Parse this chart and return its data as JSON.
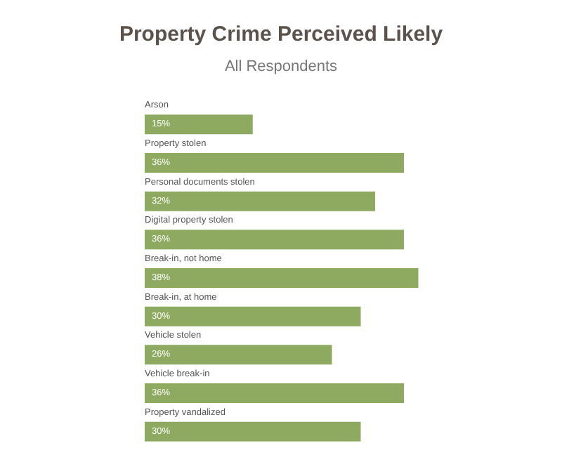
{
  "chart_data": {
    "type": "bar",
    "orientation": "horizontal",
    "title": "Property Crime Perceived Likely",
    "subtitle": "All Respondents",
    "categories": [
      "Arson",
      "Property stolen",
      "Personal documents stolen",
      "Digital property stolen",
      "Break-in, not home",
      "Break-in, at home",
      "Vehicle stolen",
      "Vehicle break-in",
      "Property vandalized"
    ],
    "values": [
      15,
      36,
      32,
      36,
      38,
      30,
      26,
      36,
      30
    ],
    "value_labels": [
      "15%",
      "36%",
      "32%",
      "36%",
      "38%",
      "30%",
      "26%",
      "36%",
      "30%"
    ],
    "color": "#8eaa60"
  }
}
